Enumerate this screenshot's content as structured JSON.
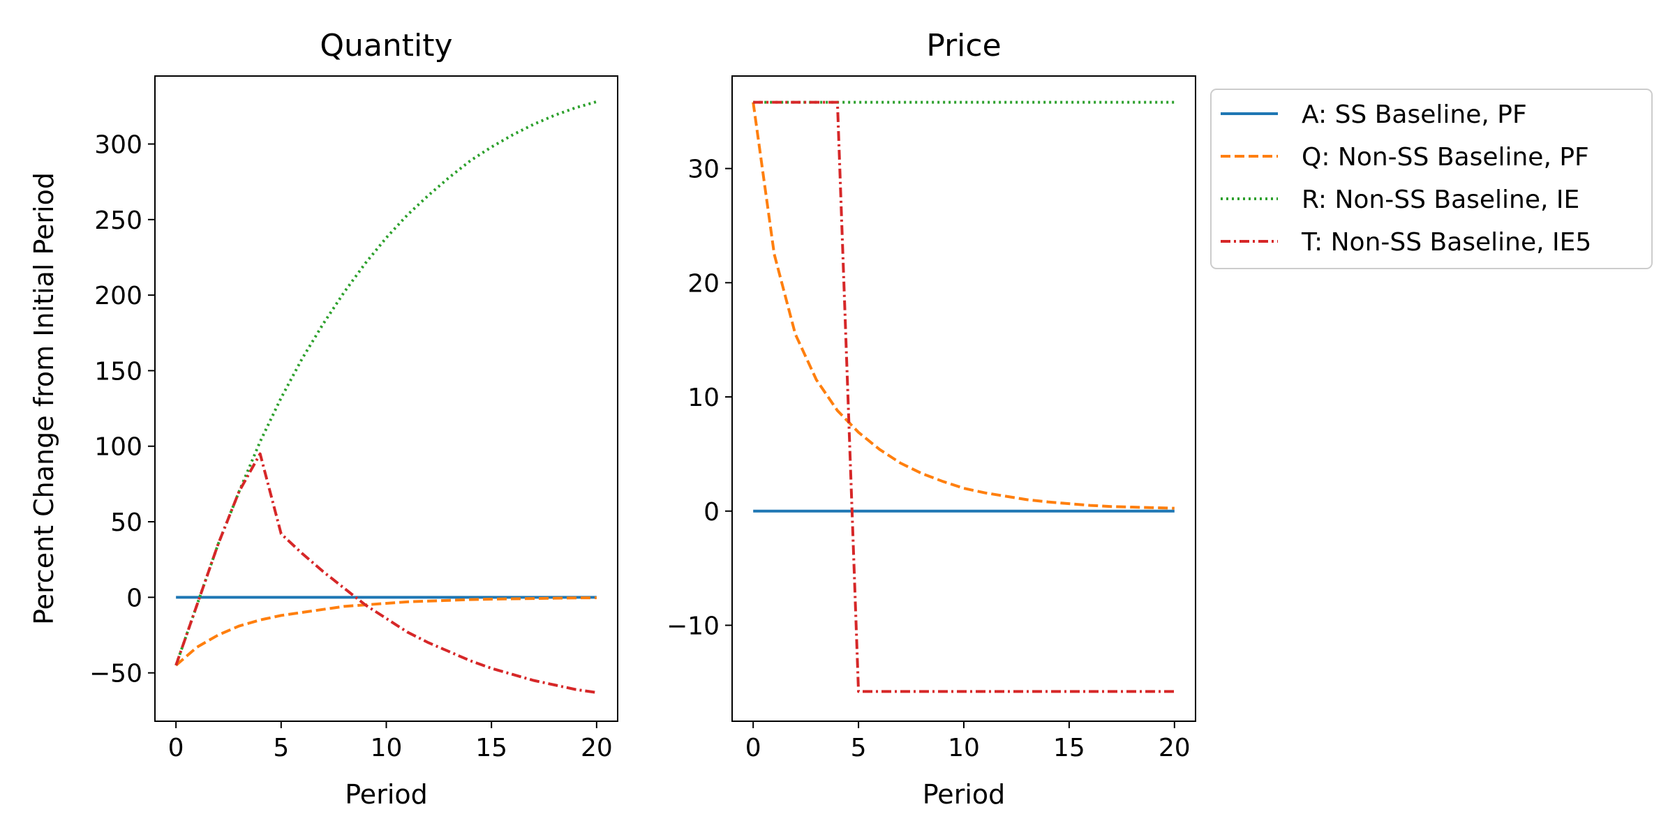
{
  "chart_data": [
    {
      "type": "line",
      "title": "Quantity",
      "xlabel": "Period",
      "ylabel": "Percent Change from Initial Period",
      "xlim": [
        -1,
        21
      ],
      "ylim": [
        -82,
        345
      ],
      "xticks": [
        0,
        5,
        10,
        15,
        20
      ],
      "yticks": [
        -50,
        0,
        50,
        100,
        150,
        200,
        250,
        300
      ],
      "grid": false,
      "x": [
        0,
        1,
        2,
        3,
        4,
        5,
        6,
        7,
        8,
        9,
        10,
        11,
        12,
        13,
        14,
        15,
        16,
        17,
        18,
        19,
        20
      ],
      "series": [
        {
          "name": "A: SS Baseline, PF",
          "style": "solid",
          "color": "#1f77b4",
          "values": [
            0,
            0,
            0,
            0,
            0,
            0,
            0,
            0,
            0,
            0,
            0,
            0,
            0,
            0,
            0,
            0,
            0,
            0,
            0,
            0,
            0
          ]
        },
        {
          "name": "Q: Non-SS Baseline, PF",
          "style": "dashed",
          "color": "#ff7f0e",
          "values": [
            -45,
            -33,
            -25,
            -19,
            -15,
            -12,
            -10,
            -8,
            -6,
            -5,
            -4,
            -3,
            -2.5,
            -2,
            -1.5,
            -1.2,
            -1,
            -0.8,
            -0.6,
            -0.4,
            -0.3
          ]
        },
        {
          "name": "R: Non-SS Baseline, IE",
          "style": "dotted",
          "color": "#2ca02c",
          "values": [
            -45,
            -5,
            35,
            70,
            103,
            132,
            158,
            181,
            202,
            221,
            238,
            253,
            266,
            278,
            289,
            298,
            306,
            313,
            319,
            324,
            328
          ]
        },
        {
          "name": "T: Non-SS Baseline, IE5",
          "style": "dashdot",
          "color": "#d62728",
          "values": [
            -45,
            -5,
            35,
            70,
            95,
            42,
            29,
            17,
            6,
            -5,
            -14,
            -23,
            -30,
            -36,
            -42,
            -47,
            -51,
            -55,
            -58,
            -61,
            -63
          ]
        }
      ]
    },
    {
      "type": "line",
      "title": "Price",
      "xlabel": "Period",
      "ylabel": "",
      "xlim": [
        -1,
        21
      ],
      "ylim": [
        -18.4,
        38.1
      ],
      "xticks": [
        0,
        5,
        10,
        15,
        20
      ],
      "yticks": [
        -10,
        0,
        10,
        20,
        30
      ],
      "ytick_labels": [
        "−10",
        "0",
        "10",
        "20",
        "30"
      ],
      "grid": false,
      "x": [
        0,
        1,
        2,
        3,
        4,
        5,
        6,
        7,
        8,
        9,
        10,
        11,
        12,
        13,
        14,
        15,
        16,
        17,
        18,
        19,
        20
      ],
      "series": [
        {
          "name": "A: SS Baseline, PF",
          "style": "solid",
          "color": "#1f77b4",
          "values": [
            0,
            0,
            0,
            0,
            0,
            0,
            0,
            0,
            0,
            0,
            0,
            0,
            0,
            0,
            0,
            0,
            0,
            0,
            0,
            0,
            0
          ]
        },
        {
          "name": "Q: Non-SS Baseline, PF",
          "style": "dashed",
          "color": "#ff7f0e",
          "values": [
            35.8,
            22.5,
            15.5,
            11.5,
            8.8,
            6.9,
            5.4,
            4.2,
            3.3,
            2.6,
            2.0,
            1.6,
            1.3,
            1.0,
            0.8,
            0.65,
            0.5,
            0.4,
            0.35,
            0.3,
            0.25
          ]
        },
        {
          "name": "R: Non-SS Baseline, IE",
          "style": "dotted",
          "color": "#2ca02c",
          "values": [
            35.8,
            35.8,
            35.8,
            35.8,
            35.8,
            35.8,
            35.8,
            35.8,
            35.8,
            35.8,
            35.8,
            35.8,
            35.8,
            35.8,
            35.8,
            35.8,
            35.8,
            35.8,
            35.8,
            35.8,
            35.8
          ]
        },
        {
          "name": "T: Non-SS Baseline, IE5",
          "style": "dashdot",
          "color": "#d62728",
          "values": [
            35.8,
            35.8,
            35.8,
            35.8,
            35.8,
            -15.8,
            -15.8,
            -15.8,
            -15.8,
            -15.8,
            -15.8,
            -15.8,
            -15.8,
            -15.8,
            -15.8,
            -15.8,
            -15.8,
            -15.8,
            -15.8,
            -15.8,
            -15.8
          ]
        }
      ]
    }
  ],
  "legend": {
    "placement": "outside upper right",
    "entries": [
      {
        "label": "A: SS Baseline, PF",
        "style": "solid",
        "color": "#1f77b4"
      },
      {
        "label": "Q: Non-SS Baseline, PF",
        "style": "dashed",
        "color": "#ff7f0e"
      },
      {
        "label": "R: Non-SS Baseline, IE",
        "style": "dotted",
        "color": "#2ca02c"
      },
      {
        "label": "T: Non-SS Baseline, IE5",
        "style": "dashdot",
        "color": "#d62728"
      }
    ]
  }
}
